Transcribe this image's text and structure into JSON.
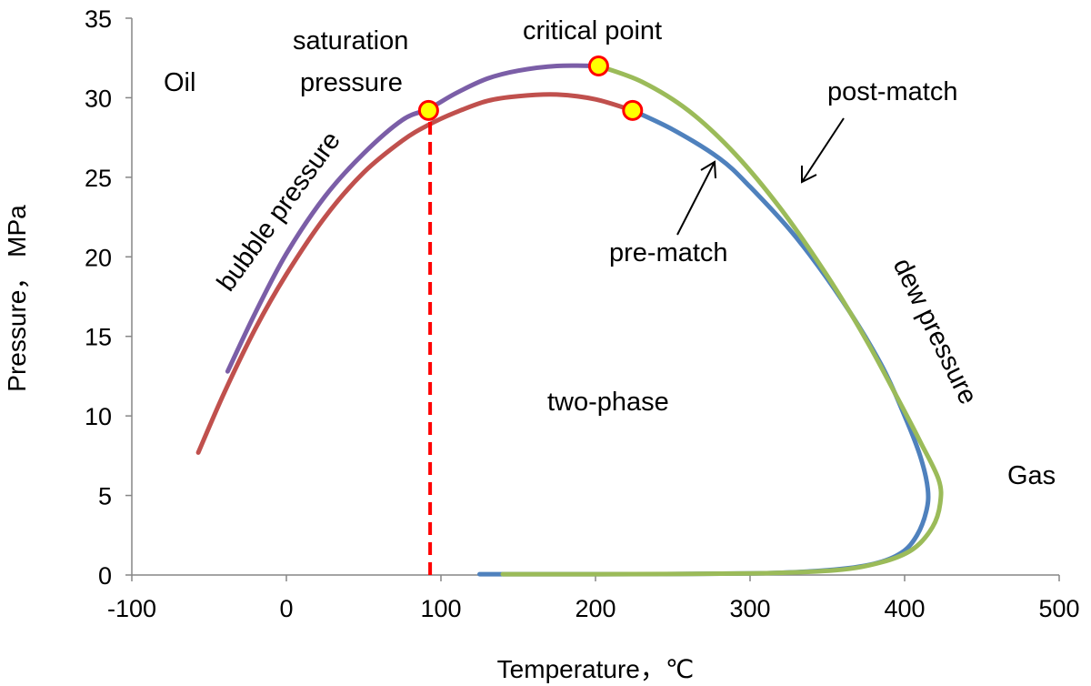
{
  "chart_data": {
    "type": "line",
    "title": "",
    "xlabel": "Temperature，℃",
    "ylabel": "Pressure，  MPa",
    "xlim": [
      -100,
      500
    ],
    "ylim": [
      0,
      35
    ],
    "xticks": [
      "-100",
      "0",
      "100",
      "200",
      "300",
      "400",
      "500"
    ],
    "yticks": [
      "0",
      "5",
      "10",
      "15",
      "20",
      "25",
      "30",
      "35"
    ],
    "grid": false,
    "legend": "none",
    "series": [
      {
        "color": "#7b5ea7",
        "points": [
          [
            -38,
            12.8
          ],
          [
            -20,
            16.5
          ],
          [
            0,
            20.2
          ],
          [
            25,
            23.8
          ],
          [
            50,
            26.5
          ],
          [
            75,
            28.6
          ],
          [
            92,
            29.3
          ],
          [
            110,
            30.3
          ],
          [
            130,
            31.2
          ],
          [
            150,
            31.7
          ],
          [
            175,
            32.0
          ],
          [
            202,
            32.0
          ]
        ]
      },
      {
        "color": "#c0504d",
        "points": [
          [
            -57,
            7.7
          ],
          [
            -40,
            11.5
          ],
          [
            -20,
            15.5
          ],
          [
            0,
            18.9
          ],
          [
            25,
            22.5
          ],
          [
            50,
            25.3
          ],
          [
            75,
            27.3
          ],
          [
            92,
            28.3
          ],
          [
            110,
            29.1
          ],
          [
            130,
            29.8
          ],
          [
            150,
            30.1
          ],
          [
            175,
            30.2
          ],
          [
            200,
            29.9
          ],
          [
            224,
            29.2
          ]
        ]
      },
      {
        "color": "#4f81bd",
        "points": [
          [
            224,
            29.2
          ],
          [
            250,
            28.0
          ],
          [
            280,
            26.2
          ],
          [
            300,
            24.4
          ],
          [
            330,
            21.2
          ],
          [
            360,
            17.2
          ],
          [
            385,
            13.2
          ],
          [
            400,
            10.0
          ],
          [
            410,
            7.5
          ],
          [
            415,
            5.4
          ],
          [
            414,
            4.0
          ],
          [
            408,
            2.5
          ],
          [
            398,
            1.4
          ],
          [
            380,
            0.7
          ],
          [
            350,
            0.3
          ],
          [
            300,
            0.1
          ],
          [
            200,
            0.05
          ],
          [
            125,
            0.05
          ]
        ]
      },
      {
        "color": "#9bbb59",
        "points": [
          [
            202,
            32.0
          ],
          [
            230,
            31.0
          ],
          [
            260,
            29.2
          ],
          [
            290,
            26.5
          ],
          [
            320,
            23.0
          ],
          [
            350,
            18.8
          ],
          [
            375,
            14.8
          ],
          [
            395,
            11.2
          ],
          [
            410,
            8.4
          ],
          [
            422,
            6.0
          ],
          [
            423,
            4.5
          ],
          [
            418,
            3.0
          ],
          [
            405,
            1.6
          ],
          [
            385,
            0.8
          ],
          [
            355,
            0.3
          ],
          [
            300,
            0.1
          ],
          [
            200,
            0.05
          ],
          [
            140,
            0.05
          ]
        ]
      }
    ],
    "saturation_line": {
      "x": 93,
      "y_from": 0,
      "y_to": 29.2,
      "color": "#ff0000"
    },
    "markers": [
      [
        92,
        29.2
      ],
      [
        202,
        32.0
      ],
      [
        224,
        29.2
      ]
    ],
    "marker_colors": {
      "fill": "#ffff00",
      "stroke": "#ff0000"
    },
    "annotations": {
      "oil": "Oil",
      "gas": "Gas",
      "two_phase": "two-phase",
      "saturation_line1": "saturation",
      "saturation_line2": "pressure",
      "critical_point": "critical point",
      "bubble_pressure": "bubble pressure",
      "dew_pressure": "dew pressure",
      "post_match": "post-match",
      "pre_match": "pre-match"
    }
  }
}
